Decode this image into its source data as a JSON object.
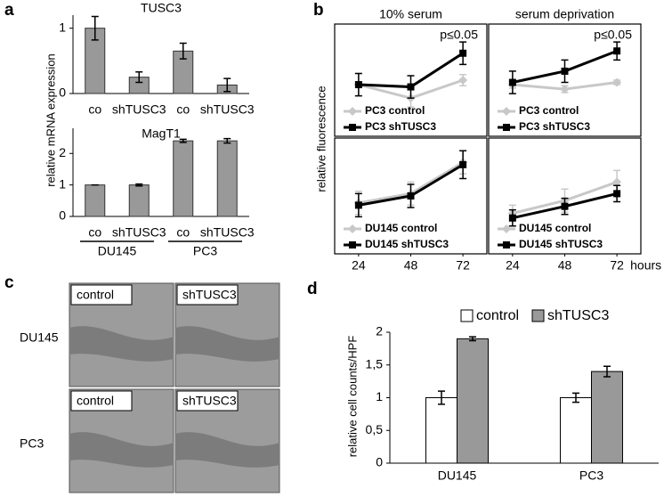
{
  "chart_data": [
    {
      "type": "bar",
      "panel": "a",
      "title": "TUSC3",
      "ylabel": "relative mRNA expression",
      "categories": [
        "co",
        "shTUSC3",
        "co",
        "shTUSC3"
      ],
      "values": [
        1.0,
        0.25,
        0.65,
        0.13
      ],
      "errors": [
        0.18,
        0.08,
        0.12,
        0.1
      ],
      "color": "#999999",
      "ylim": [
        0,
        1.2
      ],
      "yticks": [
        0,
        1
      ]
    },
    {
      "type": "bar",
      "title": "MagT1",
      "categories": [
        "co",
        "shTUSC3",
        "co",
        "shTUSC3"
      ],
      "values": [
        1.0,
        1.0,
        2.4,
        2.4
      ],
      "errors": [
        0,
        0.03,
        0.05,
        0.07
      ],
      "groups": [
        "DU145",
        "PC3"
      ],
      "color": "#999999",
      "ylim": [
        0,
        2.8
      ],
      "yticks": [
        0,
        1,
        2
      ]
    },
    {
      "type": "line",
      "panel": "b",
      "title": "10% serum",
      "ylabel": "relative fluorescence",
      "annotation": "p≤0.05",
      "x": [
        24,
        48,
        72
      ],
      "xlim": [
        13,
        83
      ],
      "ylim": [
        0,
        1
      ],
      "series": [
        {
          "name": "PC3 control",
          "color": "#c8c8c8",
          "marker": "diamond",
          "values": [
            0.46,
            0.34,
            0.5
          ],
          "errors": [
            0.1,
            0.08,
            0.05
          ]
        },
        {
          "name": "PC3 shTUSC3",
          "color": "#000000",
          "marker": "square",
          "values": [
            0.46,
            0.44,
            0.74
          ],
          "errors": [
            0.1,
            0.1,
            0.1
          ]
        }
      ]
    },
    {
      "type": "line",
      "title": "serum deprivation",
      "annotation": "p≤0.05",
      "x": [
        24,
        48,
        72
      ],
      "xlim": [
        13,
        83
      ],
      "ylim": [
        0,
        1
      ],
      "series": [
        {
          "name": "PC3 control",
          "color": "#c8c8c8",
          "marker": "diamond",
          "values": [
            0.46,
            0.42,
            0.48
          ],
          "errors": [
            0.03,
            0.03,
            0.02
          ]
        },
        {
          "name": "PC3 shTUSC3",
          "color": "#000000",
          "marker": "square",
          "values": [
            0.48,
            0.58,
            0.76
          ],
          "errors": [
            0.1,
            0.1,
            0.08
          ]
        }
      ]
    },
    {
      "type": "line",
      "x": [
        24,
        48,
        72
      ],
      "xlim": [
        13,
        83
      ],
      "ylim": [
        0,
        1
      ],
      "xticks": [
        24,
        48,
        72
      ],
      "series": [
        {
          "name": "DU145 control",
          "color": "#c8c8c8",
          "marker": "diamond",
          "values": [
            0.44,
            0.52,
            0.79
          ],
          "errors": [
            0.1,
            0.1,
            0.1
          ]
        },
        {
          "name": "DU145 shTUSC3",
          "color": "#000000",
          "marker": "square",
          "values": [
            0.42,
            0.5,
            0.77
          ],
          "errors": [
            0.1,
            0.1,
            0.12
          ]
        }
      ]
    },
    {
      "type": "line",
      "xlabel": "hours",
      "x": [
        24,
        48,
        72
      ],
      "xlim": [
        13,
        83
      ],
      "ylim": [
        0,
        1
      ],
      "xticks": [
        24,
        48,
        72
      ],
      "series": [
        {
          "name": "DU145 control",
          "color": "#c8c8c8",
          "marker": "diamond",
          "values": [
            0.35,
            0.46,
            0.62
          ],
          "errors": [
            0.07,
            0.1,
            0.1
          ]
        },
        {
          "name": "DU145 shTUSC3",
          "color": "#000000",
          "marker": "square",
          "values": [
            0.31,
            0.41,
            0.52
          ],
          "errors": [
            0.07,
            0.07,
            0.07
          ]
        }
      ]
    },
    {
      "type": "groupedbar",
      "panel": "d",
      "ylabel": "relative cell counts/HPF",
      "categories": [
        "DU145",
        "PC3"
      ],
      "series": [
        {
          "name": "control",
          "color": "#ffffff",
          "values": [
            1.0,
            1.0
          ],
          "errors": [
            0.1,
            0.07
          ]
        },
        {
          "name": "shTUSC3",
          "color": "#999999",
          "values": [
            1.9,
            1.4
          ],
          "errors": [
            0.03,
            0.08
          ]
        }
      ],
      "ylim": [
        0,
        2
      ],
      "yticks": [
        0,
        {
          "value": 0.5,
          "label": "0,5"
        },
        1,
        {
          "value": 1.5,
          "label": "1,5"
        },
        2
      ]
    }
  ],
  "panel_c": {
    "label": "c",
    "rows": [
      "DU145",
      "PC3"
    ],
    "images": [
      [
        "control",
        "shTUSC3"
      ],
      [
        "control",
        "shTUSC3"
      ]
    ]
  }
}
